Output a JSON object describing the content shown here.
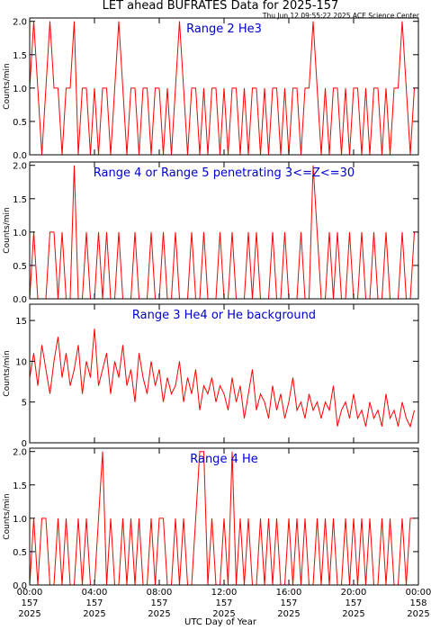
{
  "title": "LET ahead BUFRATES Data for 2025-157",
  "timestamp": "Thu Jun 12 09:55:22 2025 ACE Science Center",
  "xlabel": "UTC Day of Year",
  "chart_data": [
    {
      "type": "line",
      "label": "Range 2 He3",
      "ylabel": "Counts/min",
      "color": "#ff0000",
      "label_color": "#0000cc",
      "xlim": [
        0,
        1440
      ],
      "ylim": [
        0,
        2.05
      ],
      "yticks": [
        {
          "value": 0,
          "label": "0.0"
        },
        {
          "value": 0.5,
          "label": "0.5"
        },
        {
          "value": 1,
          "label": "1.0"
        },
        {
          "value": 1.5,
          "label": "1.5"
        },
        {
          "value": 2,
          "label": "2.0"
        }
      ],
      "x": [
        0,
        15,
        30,
        45,
        60,
        75,
        90,
        105,
        120,
        135,
        150,
        165,
        180,
        195,
        210,
        225,
        240,
        255,
        270,
        285,
        300,
        315,
        330,
        345,
        360,
        375,
        390,
        405,
        420,
        435,
        450,
        465,
        480,
        495,
        510,
        525,
        540,
        555,
        570,
        585,
        600,
        615,
        630,
        645,
        660,
        675,
        690,
        705,
        720,
        735,
        750,
        765,
        780,
        795,
        810,
        825,
        840,
        855,
        870,
        885,
        900,
        915,
        930,
        945,
        960,
        975,
        990,
        1005,
        1020,
        1035,
        1050,
        1065,
        1080,
        1095,
        1110,
        1125,
        1140,
        1155,
        1170,
        1185,
        1200,
        1215,
        1230,
        1245,
        1260,
        1275,
        1290,
        1305,
        1320,
        1335,
        1350,
        1365,
        1380,
        1395,
        1410,
        1425
      ],
      "values": [
        1,
        2,
        1,
        0,
        1,
        2,
        1,
        1,
        0,
        1,
        1,
        2,
        0,
        1,
        1,
        0,
        1,
        0,
        1,
        1,
        0,
        1,
        2,
        1,
        0,
        1,
        1,
        0,
        1,
        1,
        0,
        1,
        1,
        0,
        1,
        0,
        1,
        2,
        1,
        0,
        1,
        1,
        0,
        1,
        0,
        1,
        1,
        0,
        1,
        0,
        1,
        1,
        0,
        1,
        0,
        1,
        1,
        0,
        1,
        0,
        1,
        1,
        0,
        1,
        0,
        1,
        1,
        0,
        1,
        1,
        2,
        1,
        0,
        1,
        0,
        1,
        1,
        0,
        1,
        0,
        1,
        1,
        0,
        1,
        0,
        1,
        1,
        0,
        1,
        0,
        1,
        1,
        2,
        1,
        0,
        1
      ]
    },
    {
      "type": "line",
      "label": "Range 4 or Range 5 penetrating 3<=Z<=30",
      "ylabel": "Counts/min",
      "color": "#ff0000",
      "label_color": "#0000cc",
      "xlim": [
        0,
        1440
      ],
      "ylim": [
        0,
        2.05
      ],
      "yticks": [
        {
          "value": 0,
          "label": "0.0"
        },
        {
          "value": 0.5,
          "label": "0.5"
        },
        {
          "value": 1,
          "label": "1.0"
        },
        {
          "value": 1.5,
          "label": "1.5"
        },
        {
          "value": 2,
          "label": "2.0"
        }
      ],
      "x": [
        0,
        15,
        30,
        45,
        60,
        75,
        90,
        105,
        120,
        135,
        150,
        165,
        180,
        195,
        210,
        225,
        240,
        255,
        270,
        285,
        300,
        315,
        330,
        345,
        360,
        375,
        390,
        405,
        420,
        435,
        450,
        465,
        480,
        495,
        510,
        525,
        540,
        555,
        570,
        585,
        600,
        615,
        630,
        645,
        660,
        675,
        690,
        705,
        720,
        735,
        750,
        765,
        780,
        795,
        810,
        825,
        840,
        855,
        870,
        885,
        900,
        915,
        930,
        945,
        960,
        975,
        990,
        1005,
        1020,
        1035,
        1050,
        1065,
        1080,
        1095,
        1110,
        1125,
        1140,
        1155,
        1170,
        1185,
        1200,
        1215,
        1230,
        1245,
        1260,
        1275,
        1290,
        1305,
        1320,
        1335,
        1350,
        1365,
        1380,
        1395,
        1410,
        1425
      ],
      "values": [
        0,
        1,
        0,
        0,
        0,
        1,
        1,
        0,
        1,
        0,
        0,
        2,
        0,
        0,
        1,
        0,
        0,
        1,
        0,
        1,
        0,
        0,
        1,
        0,
        0,
        0,
        1,
        0,
        0,
        0,
        1,
        0,
        0,
        1,
        0,
        0,
        1,
        0,
        0,
        0,
        1,
        0,
        0,
        1,
        0,
        0,
        0,
        1,
        0,
        0,
        1,
        0,
        0,
        0,
        1,
        0,
        1,
        0,
        0,
        0,
        1,
        0,
        0,
        1,
        0,
        0,
        0,
        1,
        0,
        0,
        2,
        1,
        0,
        0,
        1,
        0,
        1,
        0,
        0,
        1,
        0,
        0,
        1,
        0,
        0,
        1,
        0,
        0,
        1,
        0,
        0,
        0,
        1,
        0,
        0,
        1
      ]
    },
    {
      "type": "line",
      "label": "Range 3 He4 or He background",
      "ylabel": "Counts/min",
      "color": "#ff0000",
      "label_color": "#0000cc",
      "xlim": [
        0,
        1440
      ],
      "ylim": [
        0,
        17
      ],
      "yticks": [
        0,
        5,
        10,
        15
      ],
      "x": [
        0,
        15,
        30,
        45,
        60,
        75,
        90,
        105,
        120,
        135,
        150,
        165,
        180,
        195,
        210,
        225,
        240,
        255,
        270,
        285,
        300,
        315,
        330,
        345,
        360,
        375,
        390,
        405,
        420,
        435,
        450,
        465,
        480,
        495,
        510,
        525,
        540,
        555,
        570,
        585,
        600,
        615,
        630,
        645,
        660,
        675,
        690,
        705,
        720,
        735,
        750,
        765,
        780,
        795,
        810,
        825,
        840,
        855,
        870,
        885,
        900,
        915,
        930,
        945,
        960,
        975,
        990,
        1005,
        1020,
        1035,
        1050,
        1065,
        1080,
        1095,
        1110,
        1125,
        1140,
        1155,
        1170,
        1185,
        1200,
        1215,
        1230,
        1245,
        1260,
        1275,
        1290,
        1305,
        1320,
        1335,
        1350,
        1365,
        1380,
        1395,
        1410,
        1425
      ],
      "values": [
        8,
        11,
        7,
        12,
        9,
        6,
        10,
        13,
        8,
        11,
        7,
        9,
        12,
        6,
        10,
        8,
        14,
        7,
        9,
        11,
        6,
        10,
        8,
        12,
        7,
        9,
        5,
        11,
        8,
        6,
        10,
        7,
        9,
        5,
        8,
        6,
        7,
        10,
        5,
        8,
        6,
        9,
        4,
        7,
        6,
        8,
        5,
        7,
        6,
        4,
        8,
        5,
        7,
        3,
        6,
        9,
        4,
        6,
        5,
        3,
        7,
        4,
        6,
        3,
        5,
        8,
        4,
        5,
        3,
        6,
        4,
        5,
        3,
        5,
        4,
        7,
        2,
        4,
        5,
        3,
        6,
        3,
        4,
        2,
        5,
        3,
        4,
        2,
        6,
        3,
        4,
        2,
        5,
        3,
        2,
        4
      ]
    },
    {
      "type": "line",
      "label": "Range 4 He",
      "ylabel": "Counts/min",
      "color": "#ff0000",
      "label_color": "#0000cc",
      "xlim": [
        0,
        1440
      ],
      "ylim": [
        0,
        2.05
      ],
      "yticks": [
        {
          "value": 0,
          "label": "0.0"
        },
        {
          "value": 0.5,
          "label": "0.5"
        },
        {
          "value": 1,
          "label": "1.0"
        },
        {
          "value": 1.5,
          "label": "1.5"
        },
        {
          "value": 2,
          "label": "2.0"
        }
      ],
      "xticks": [
        {
          "value": 0,
          "label": [
            "00:00",
            "157",
            "2025"
          ]
        },
        {
          "value": 240,
          "label": [
            "04:00",
            "157",
            "2025"
          ]
        },
        {
          "value": 480,
          "label": [
            "08:00",
            "157",
            "2025"
          ]
        },
        {
          "value": 720,
          "label": [
            "12:00",
            "157",
            "2025"
          ]
        },
        {
          "value": 960,
          "label": [
            "16:00",
            "157",
            "2025"
          ]
        },
        {
          "value": 1200,
          "label": [
            "20:00",
            "157",
            "2025"
          ]
        },
        {
          "value": 1440,
          "label": [
            "00:00",
            "158",
            "2025"
          ]
        }
      ],
      "x": [
        0,
        15,
        30,
        45,
        60,
        75,
        90,
        105,
        120,
        135,
        150,
        165,
        180,
        195,
        210,
        225,
        240,
        255,
        270,
        285,
        300,
        315,
        330,
        345,
        360,
        375,
        390,
        405,
        420,
        435,
        450,
        465,
        480,
        495,
        510,
        525,
        540,
        555,
        570,
        585,
        600,
        615,
        630,
        645,
        660,
        675,
        690,
        705,
        720,
        735,
        750,
        765,
        780,
        795,
        810,
        825,
        840,
        855,
        870,
        885,
        900,
        915,
        930,
        945,
        960,
        975,
        990,
        1005,
        1020,
        1035,
        1050,
        1065,
        1080,
        1095,
        1110,
        1125,
        1140,
        1155,
        1170,
        1185,
        1200,
        1215,
        1230,
        1245,
        1260,
        1275,
        1290,
        1305,
        1320,
        1335,
        1350,
        1365,
        1380,
        1395,
        1410,
        1425
      ],
      "values": [
        0,
        1,
        0,
        1,
        1,
        0,
        0,
        1,
        0,
        1,
        0,
        0,
        1,
        0,
        1,
        0,
        0,
        1,
        2,
        0,
        1,
        0,
        0,
        1,
        0,
        1,
        0,
        1,
        0,
        0,
        1,
        0,
        1,
        1,
        0,
        0,
        1,
        0,
        1,
        0,
        0,
        1,
        2,
        2,
        0,
        1,
        0,
        0,
        1,
        0,
        2,
        0,
        1,
        0,
        1,
        0,
        0,
        1,
        0,
        1,
        0,
        1,
        0,
        0,
        1,
        0,
        1,
        0,
        1,
        0,
        0,
        1,
        0,
        1,
        0,
        1,
        0,
        0,
        1,
        0,
        1,
        0,
        1,
        0,
        1,
        0,
        0,
        1,
        0,
        1,
        0,
        0,
        1,
        0,
        1,
        1
      ]
    }
  ]
}
